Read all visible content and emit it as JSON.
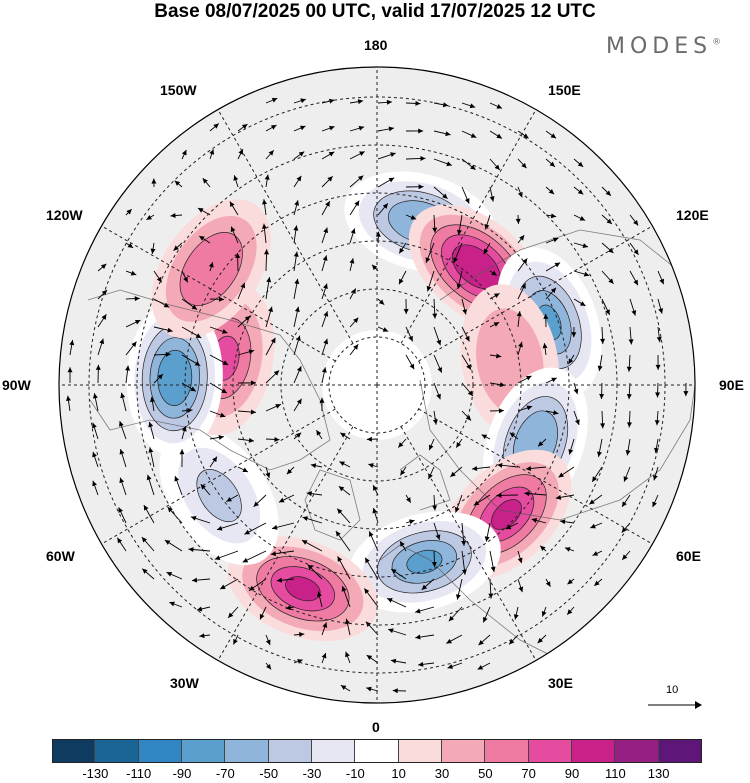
{
  "title": "Base 08/07/2025 00 UTC, valid 17/07/2025 12 UTC",
  "brand": "MODES",
  "brand_mark": "®",
  "longitude_labels": {
    "lon_180": "180",
    "lon_150e": "150E",
    "lon_120e": "120E",
    "lon_90e": "90E",
    "lon_60e": "60E",
    "lon_30e": "30E",
    "lon_0": "0",
    "lon_30w": "30W",
    "lon_60w": "60W",
    "lon_90w": "90W",
    "lon_120w": "120W",
    "lon_150w": "150W"
  },
  "vector_reference": {
    "label": "10"
  },
  "colorbar": {
    "colors": [
      "#0f3b60",
      "#1a6496",
      "#2f86c2",
      "#5b9fcf",
      "#90b5da",
      "#bdc8e3",
      "#e7e7f3",
      "#ffffff",
      "#fbdcdc",
      "#f4a9b7",
      "#ef7ba3",
      "#e54b9e",
      "#c9218a",
      "#961f84",
      "#5e1778"
    ],
    "tick_labels": [
      "-130",
      "-110",
      "-90",
      "-70",
      "-50",
      "-30",
      "-10",
      "10",
      "30",
      "50",
      "70",
      "90",
      "110",
      "130"
    ]
  },
  "map_anomalies": [
    {
      "lon": 165,
      "lat": 55,
      "value": -70
    },
    {
      "lon": 140,
      "lat": 58,
      "value": 90
    },
    {
      "lon": 110,
      "lat": 52,
      "value": -80
    },
    {
      "lon": 100,
      "lat": 62,
      "value": 30
    },
    {
      "lon": 70,
      "lat": 55,
      "value": -70
    },
    {
      "lon": 45,
      "lat": 52,
      "value": 80
    },
    {
      "lon": 15,
      "lat": 52,
      "value": -80
    },
    {
      "lon": -20,
      "lat": 45,
      "value": 80
    },
    {
      "lon": -55,
      "lat": 50,
      "value": -40
    },
    {
      "lon": -100,
      "lat": 58,
      "value": 60
    },
    {
      "lon": -92,
      "lat": 48,
      "value": -90
    },
    {
      "lon": -125,
      "lat": 48,
      "value": 50
    }
  ]
}
